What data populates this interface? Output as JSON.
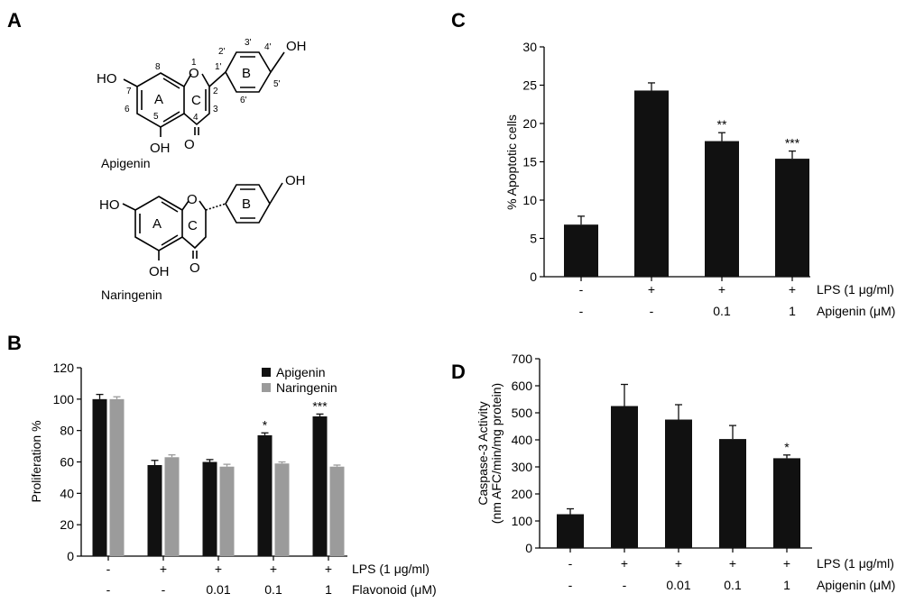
{
  "panels": {
    "A": {
      "letter": "A",
      "apigenin_name": "Apigenin",
      "naringenin_name": "Naringenin",
      "atoms": {
        "ho": "HO",
        "oh": "OH",
        "o": "O",
        "ring_a": "A",
        "ring_b": "B",
        "ring_c": "C"
      },
      "numbering": {
        "n1": "1",
        "n2": "2",
        "n3": "3",
        "n4": "4",
        "n5": "5",
        "n6": "6",
        "n7": "7",
        "n8": "8",
        "n1p": "1'",
        "n2p": "2'",
        "n3p": "3'",
        "n4p": "4'",
        "n5p": "5'",
        "n6p": "6'"
      }
    },
    "B": {
      "letter": "B"
    },
    "C": {
      "letter": "C"
    },
    "D": {
      "letter": "D"
    }
  },
  "colors": {
    "apigenin": "#111111",
    "naringenin": "#9b9b9b",
    "bar": "#111111"
  },
  "chart_data": [
    {
      "panel": "B",
      "type": "bar",
      "ylabel": "Proliferation %",
      "ylim": [
        0,
        120
      ],
      "yticks": [
        0,
        20,
        40,
        60,
        80,
        100,
        120
      ],
      "legend_placement": "top-right",
      "groups": 5,
      "series": [
        {
          "name": "Apigenin",
          "values": [
            100,
            58,
            60,
            77,
            89
          ],
          "errors": [
            3,
            3,
            1.5,
            1.5,
            1.5
          ],
          "sig": [
            "",
            "",
            "",
            "*",
            "***"
          ]
        },
        {
          "name": "Naringenin",
          "values": [
            100,
            63,
            57,
            59,
            57
          ],
          "errors": [
            1.5,
            1.5,
            1.5,
            1,
            1
          ],
          "sig": [
            "",
            "",
            "",
            "",
            ""
          ]
        }
      ],
      "conditions": [
        {
          "name": "LPS (1 μg/ml)",
          "values": [
            "-",
            "+",
            "+",
            "+",
            "+"
          ]
        },
        {
          "name": "Flavonoid (μM)",
          "values": [
            "-",
            "-",
            "0.01",
            "0.1",
            "1"
          ]
        }
      ]
    },
    {
      "panel": "C",
      "type": "bar",
      "ylabel": "% Apoptotic cells",
      "ylim": [
        0,
        30
      ],
      "yticks": [
        0,
        5,
        10,
        15,
        20,
        25,
        30
      ],
      "groups": 4,
      "series": [
        {
          "name": "",
          "values": [
            6.8,
            24.3,
            17.7,
            15.4
          ],
          "errors": [
            1.1,
            1.0,
            1.1,
            1.0
          ],
          "sig": [
            "",
            "",
            "**",
            "***"
          ]
        }
      ],
      "conditions": [
        {
          "name": "LPS (1 μg/ml)",
          "values": [
            "-",
            "+",
            "+",
            "+"
          ]
        },
        {
          "name": "Apigenin (μM)",
          "values": [
            "-",
            "-",
            "0.1",
            "1"
          ]
        }
      ]
    },
    {
      "panel": "D",
      "type": "bar",
      "ylabel": "Caspase-3 Activity",
      "ylabel2": "(nm AFC/min/mg protein)",
      "ylim": [
        0,
        700
      ],
      "yticks": [
        0,
        100,
        200,
        300,
        400,
        500,
        600,
        700
      ],
      "groups": 5,
      "series": [
        {
          "name": "",
          "values": [
            125,
            525,
            475,
            403,
            332
          ],
          "errors": [
            20,
            80,
            55,
            50,
            12
          ],
          "sig": [
            "",
            "",
            "",
            "",
            "*"
          ]
        }
      ],
      "conditions": [
        {
          "name": "LPS (1 μg/ml)",
          "values": [
            "-",
            "+",
            "+",
            "+",
            "+"
          ]
        },
        {
          "name": "Apigenin (μM)",
          "values": [
            "-",
            "-",
            "0.01",
            "0.1",
            "1"
          ]
        }
      ]
    }
  ]
}
